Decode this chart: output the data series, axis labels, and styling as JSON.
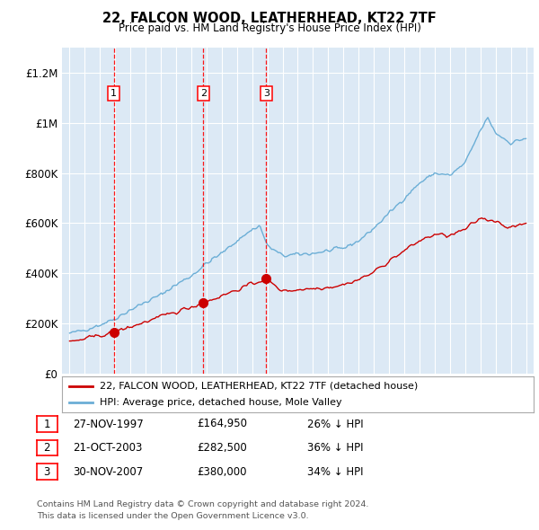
{
  "title": "22, FALCON WOOD, LEATHERHEAD, KT22 7TF",
  "subtitle": "Price paid vs. HM Land Registry's House Price Index (HPI)",
  "legend_line1": "22, FALCON WOOD, LEATHERHEAD, KT22 7TF (detached house)",
  "legend_line2": "HPI: Average price, detached house, Mole Valley",
  "footer1": "Contains HM Land Registry data © Crown copyright and database right 2024.",
  "footer2": "This data is licensed under the Open Government Licence v3.0.",
  "sales": [
    {
      "num": 1,
      "date_x": 1997.91,
      "price": 164950,
      "label": "27-NOV-1997",
      "price_label": "£164,950",
      "pct_label": "26% ↓ HPI"
    },
    {
      "num": 2,
      "date_x": 2003.8,
      "price": 282500,
      "label": "21-OCT-2003",
      "price_label": "£282,500",
      "pct_label": "36% ↓ HPI"
    },
    {
      "num": 3,
      "date_x": 2007.92,
      "price": 380000,
      "label": "30-NOV-2007",
      "price_label": "£380,000",
      "pct_label": "34% ↓ HPI"
    }
  ],
  "hpi_color": "#6baed6",
  "sale_color": "#cc0000",
  "plot_bg": "#dce9f5",
  "grid_color": "#ffffff",
  "ylim": [
    0,
    1300000
  ],
  "xlim_start": 1994.5,
  "xlim_end": 2025.5,
  "yticks": [
    0,
    200000,
    400000,
    600000,
    800000,
    1000000,
    1200000
  ],
  "ytick_labels": [
    "£0",
    "£200K",
    "£400K",
    "£600K",
    "£800K",
    "£1M",
    "£1.2M"
  ],
  "xticks": [
    1995,
    1996,
    1997,
    1998,
    1999,
    2000,
    2001,
    2002,
    2003,
    2004,
    2005,
    2006,
    2007,
    2008,
    2009,
    2010,
    2011,
    2012,
    2013,
    2014,
    2015,
    2016,
    2017,
    2018,
    2019,
    2020,
    2021,
    2022,
    2023,
    2024,
    2025
  ],
  "hpi_anchors_x": [
    1995,
    1996,
    1997,
    1998,
    1999,
    2000,
    2001,
    2002,
    2003,
    2004,
    2005,
    2006,
    2007,
    2007.5,
    2008,
    2009,
    2010,
    2011,
    2012,
    2013,
    2014,
    2015,
    2016,
    2017,
    2018,
    2019,
    2020,
    2021,
    2022,
    2022.5,
    2023,
    2024,
    2025
  ],
  "hpi_anchors_y": [
    160000,
    175000,
    195000,
    220000,
    255000,
    285000,
    315000,
    355000,
    390000,
    440000,
    480000,
    530000,
    575000,
    590000,
    510000,
    470000,
    475000,
    480000,
    490000,
    500000,
    530000,
    580000,
    640000,
    700000,
    760000,
    800000,
    790000,
    840000,
    970000,
    1020000,
    960000,
    920000,
    940000
  ],
  "sale_anchors_x": [
    1995,
    1997.91,
    2003.8,
    2007.92,
    2008.5,
    2009,
    2010,
    2011,
    2012,
    2013,
    2014,
    2015,
    2016,
    2017,
    2018,
    2019,
    2020,
    2021,
    2022,
    2023,
    2024,
    2025
  ],
  "sale_anchors_y": [
    125000,
    164950,
    282500,
    380000,
    350000,
    330000,
    335000,
    340000,
    345000,
    355000,
    375000,
    405000,
    450000,
    490000,
    530000,
    555000,
    550000,
    575000,
    620000,
    610000,
    580000,
    600000
  ]
}
